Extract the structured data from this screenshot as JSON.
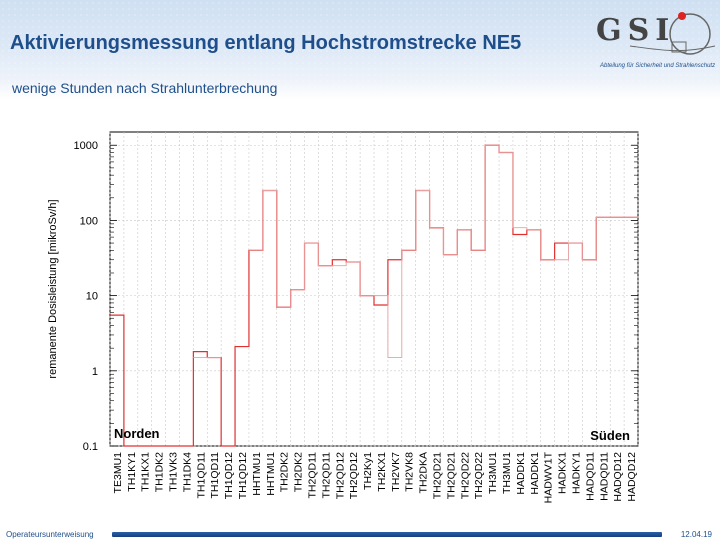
{
  "header": {
    "title": "Aktivierungsmessung entlang Hochstromstrecke NE5",
    "subtitle": "wenige Stunden nach Strahlunterbrechung",
    "logo_text": "GSI",
    "logo_caption": "Abteilung für Sicherheit und Strahlenschutz"
  },
  "footer": {
    "left": "Operateursunterweisung",
    "right": "12.04.19"
  },
  "colors": {
    "series1": "#e03030",
    "series2": "#e8a0a0",
    "title": "#1f4f8b"
  },
  "chart_data": {
    "type": "line",
    "scale": "log",
    "ylabel": "remanente Dosisleistung [mikroSv/h]",
    "ylim": [
      0.1,
      1500
    ],
    "yticks": [
      "0.1",
      "1",
      "10",
      "100",
      "1000"
    ],
    "annotations": {
      "left": "Norden",
      "right": "Süden"
    },
    "categories": [
      "TE3MU1",
      "TH1KY1",
      "TH1KX1",
      "TH1DK2",
      "TH1VK3",
      "TH1DK4",
      "TH1QD11",
      "TH1QD11",
      "TH1QD12",
      "TH1QD12",
      "HHTMU1",
      "HHTMU1",
      "TH2DK2",
      "TH2DK2",
      "TH2QD11",
      "TH2QD11",
      "TH2QD12",
      "TH2QD12",
      "TH2Ky1",
      "TH2KX1",
      "TH2VK7",
      "TH2VK8",
      "TH2DKA",
      "TH2QD21",
      "TH2QD21",
      "TH2QD22",
      "TH2QD22",
      "TH3MU1",
      "TH3MU1",
      "HADDK1",
      "HADDK1",
      "HADWV1T",
      "HADKX1",
      "HADKY1",
      "HADQD11",
      "HADQD11",
      "HADQD12",
      "HADQD12"
    ],
    "series": [
      {
        "values": [
          5.5,
          0.1,
          0.1,
          0.1,
          0.1,
          0.1,
          1.8,
          1.5,
          0.1,
          2.1,
          40,
          250,
          7,
          12,
          50,
          25,
          30,
          28,
          10,
          7.5,
          30,
          40,
          250,
          80,
          35,
          75,
          40,
          1000,
          800,
          65,
          75,
          30,
          50,
          50,
          30,
          110,
          110,
          110
        ]
      },
      {
        "values": [
          null,
          null,
          null,
          null,
          null,
          null,
          1.5,
          1.5,
          null,
          null,
          40,
          250,
          7,
          12,
          50,
          25,
          25,
          28,
          10,
          10,
          1.5,
          40,
          250,
          80,
          35,
          75,
          40,
          1000,
          800,
          80,
          75,
          30,
          30,
          50,
          30,
          110,
          110,
          110
        ]
      }
    ]
  }
}
